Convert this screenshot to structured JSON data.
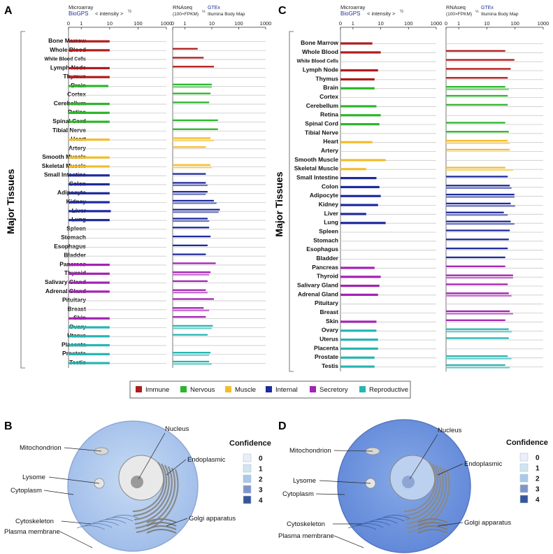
{
  "figure": {
    "panel_labels": {
      "a": "A",
      "b": "B",
      "c": "C",
      "d": "D"
    },
    "y_axis_title": "Major Tissues",
    "microarray": {
      "title": "Microarray",
      "source": "BioGPS",
      "metric": "< intensity >",
      "exponent": "½"
    },
    "rnaseq": {
      "title": "RNAseq",
      "metric": "(100×FPKM)",
      "exponent": "½"
    },
    "gtex": {
      "title": "GTEx",
      "subtitle": "Illumina Body Map"
    },
    "tick_labels": [
      "0",
      "1",
      "10",
      "100",
      "1000"
    ],
    "tissues": [
      "Bone Marrow",
      "Whole Blood",
      "White Blood Cells",
      "Lymph Node",
      "Thymus",
      "Brain",
      "Cortex",
      "Cerebellum",
      "Retina",
      "Spinal Cord",
      "Tibial Nerve",
      "Heart",
      "Artery",
      "Smooth Muscle",
      "Skeletal Muscle",
      "Small Intestine",
      "Colon",
      "Adipocyte",
      "Kidney",
      "Liver",
      "Lung",
      "Spleen",
      "Stomach",
      "Esophagus",
      "Bladder",
      "Pancreas",
      "Thyroid",
      "Salivary Gland",
      "Adrenal Gland",
      "Pituitary",
      "Breast",
      "Skin",
      "Ovary",
      "Uterus",
      "Placenta",
      "Prostate",
      "Testis"
    ],
    "tissue_groups": [
      "Immune",
      "Immune",
      "Immune",
      "Immune",
      "Immune",
      "Nervous",
      "Nervous",
      "Nervous",
      "Nervous",
      "Nervous",
      "Nervous",
      "Muscle",
      "Muscle",
      "Muscle",
      "Muscle",
      "Internal",
      "Internal",
      "Internal",
      "Internal",
      "Internal",
      "Internal",
      "Internal",
      "Internal",
      "Internal",
      "Internal",
      "Secretory",
      "Secretory",
      "Secretory",
      "Secretory",
      "Secretory",
      "Secretory",
      "Secretory",
      "Reproductive",
      "Reproductive",
      "Reproductive",
      "Reproductive",
      "Reproductive"
    ],
    "legend": [
      {
        "name": "Immune",
        "color": "#b01c1c"
      },
      {
        "name": "Nervous",
        "color": "#2db52d"
      },
      {
        "name": "Muscle",
        "color": "#f2bd2c"
      },
      {
        "name": "Internal",
        "color": "#1f2a9c"
      },
      {
        "name": "Secretory",
        "color": "#a422b4"
      },
      {
        "name": "Reproductive",
        "color": "#27b5b2"
      }
    ],
    "cell": {
      "labels": {
        "nucleus": "Nucleus",
        "mitochondrion": "Mitochondrion",
        "endoplasmic": "Endoplasmic",
        "lysome": "Lysome",
        "cytoplasm": "Cytoplasm",
        "cytoskeleton": "Cytoskeleton",
        "golgi": "Golgi apparatus",
        "plasma_membrane": "Plasma membrane"
      },
      "confidence_title": "Confidence",
      "confidence_levels": [
        "0",
        "1",
        "2",
        "3",
        "4"
      ],
      "confidence_colors": [
        "#e9eef8",
        "#cfe6f0",
        "#a9c9ea",
        "#7f95c7",
        "#35579a"
      ]
    }
  },
  "chart_data": [
    {
      "type": "bar",
      "orientation": "horizontal",
      "panel": "A",
      "dataset": "Microarray (BioGPS)",
      "title": "Microarray BioGPS < intensity >^1/2",
      "xlabel": "< intensity >^1/2",
      "ylabel": "Major Tissues",
      "xscale": "log",
      "xlim": [
        0,
        1000
      ],
      "categories": [
        "Bone Marrow",
        "Whole Blood",
        "White Blood Cells",
        "Lymph Node",
        "Thymus",
        "Brain",
        "Cortex",
        "Cerebellum",
        "Retina",
        "Spinal Cord",
        "Tibial Nerve",
        "Heart",
        "Artery",
        "Smooth Muscle",
        "Skeletal Muscle",
        "Small Intestine",
        "Colon",
        "Adipocyte",
        "Kidney",
        "Liver",
        "Lung",
        "Spleen",
        "Stomach",
        "Esophagus",
        "Bladder",
        "Pancreas",
        "Thyroid",
        "Salivary Gland",
        "Adrenal Gland",
        "Pituitary",
        "Breast",
        "Skin",
        "Ovary",
        "Uterus",
        "Placenta",
        "Prostate",
        "Testis"
      ],
      "values": [
        10,
        10,
        null,
        10,
        10,
        9,
        null,
        10,
        10,
        10,
        null,
        10,
        null,
        10,
        10,
        10,
        10,
        10,
        10,
        11,
        10,
        null,
        null,
        null,
        null,
        10,
        10,
        10,
        10,
        null,
        null,
        10,
        10,
        10,
        10,
        10,
        10
      ]
    },
    {
      "type": "bar",
      "orientation": "horizontal",
      "panel": "A",
      "dataset": "RNAseq (GTEx / Illumina Body Map)",
      "title": "RNAseq (100×FPKM)^1/2",
      "xlabel": "(100×FPKM)^1/2",
      "xscale": "log",
      "xlim": [
        0,
        1000
      ],
      "categories": [
        "Bone Marrow",
        "Whole Blood",
        "White Blood Cells",
        "Lymph Node",
        "Thymus",
        "Brain",
        "Cortex",
        "Cerebellum",
        "Retina",
        "Spinal Cord",
        "Tibial Nerve",
        "Heart",
        "Artery",
        "Smooth Muscle",
        "Skeletal Muscle",
        "Small Intestine",
        "Colon",
        "Adipocyte",
        "Kidney",
        "Liver",
        "Lung",
        "Spleen",
        "Stomach",
        "Esophagus",
        "Bladder",
        "Pancreas",
        "Thyroid",
        "Salivary Gland",
        "Adrenal Gland",
        "Pituitary",
        "Breast",
        "Skin",
        "Ovary",
        "Uterus",
        "Placenta",
        "Prostate",
        "Testis"
      ],
      "series": [
        {
          "name": "GTEx",
          "values": [
            null,
            3,
            5,
            12,
            null,
            10,
            9,
            8,
            null,
            17,
            17,
            9,
            6,
            null,
            9,
            6,
            6,
            7,
            12,
            20,
            7,
            8,
            9,
            7,
            6,
            14,
            9,
            7,
            6,
            12,
            5,
            6,
            11,
            7,
            null,
            9,
            8
          ]
        },
        {
          "name": "Illumina Body Map",
          "values": [
            null,
            null,
            null,
            null,
            null,
            10,
            null,
            null,
            null,
            null,
            null,
            12,
            null,
            null,
            10,
            null,
            7,
            6,
            15,
            18,
            8,
            null,
            null,
            null,
            null,
            null,
            8,
            null,
            7,
            null,
            8,
            null,
            10,
            null,
            null,
            8,
            10
          ]
        }
      ]
    },
    {
      "type": "bar",
      "orientation": "horizontal",
      "panel": "C",
      "dataset": "Microarray (BioGPS)",
      "title": "Microarray BioGPS < intensity >^1/2",
      "xlabel": "< intensity >^1/2",
      "ylabel": "Major Tissues",
      "xscale": "log",
      "xlim": [
        0,
        1000
      ],
      "categories": [
        "Bone Marrow",
        "Whole Blood",
        "White Blood Cells",
        "Lymph Node",
        "Thymus",
        "Brain",
        "Cortex",
        "Cerebellum",
        "Retina",
        "Spinal Cord",
        "Tibial Nerve",
        "Heart",
        "Artery",
        "Smooth Muscle",
        "Skeletal Muscle",
        "Small Intestine",
        "Colon",
        "Adipocyte",
        "Kidney",
        "Liver",
        "Lung",
        "Spleen",
        "Stomach",
        "Esophagus",
        "Bladder",
        "Pancreas",
        "Thyroid",
        "Salivary Gland",
        "Adrenal Gland",
        "Pituitary",
        "Breast",
        "Skin",
        "Ovary",
        "Uterus",
        "Placenta",
        "Prostate",
        "Testis"
      ],
      "values": [
        5,
        10,
        null,
        8,
        6,
        6,
        null,
        7,
        10,
        9,
        null,
        5,
        null,
        15,
        3,
        7,
        9,
        10,
        8,
        3,
        15,
        null,
        null,
        null,
        null,
        6,
        10,
        9,
        8,
        null,
        null,
        7,
        7,
        8,
        8,
        6,
        6
      ]
    },
    {
      "type": "bar",
      "orientation": "horizontal",
      "panel": "C",
      "dataset": "RNAseq (GTEx / Illumina Body Map)",
      "title": "RNAseq (100×FPKM)^1/2",
      "xlabel": "(100×FPKM)^1/2",
      "xscale": "log",
      "xlim": [
        0,
        1000
      ],
      "categories": [
        "Bone Marrow",
        "Whole Blood",
        "White Blood Cells",
        "Lymph Node",
        "Thymus",
        "Brain",
        "Cortex",
        "Cerebellum",
        "Retina",
        "Spinal Cord",
        "Tibial Nerve",
        "Heart",
        "Artery",
        "Smooth Muscle",
        "Skeletal Muscle",
        "Small Intestine",
        "Colon",
        "Adipocyte",
        "Kidney",
        "Liver",
        "Lung",
        "Spleen",
        "Stomach",
        "Esophagus",
        "Bladder",
        "Pancreas",
        "Thyroid",
        "Salivary Gland",
        "Adrenal Gland",
        "Pituitary",
        "Breast",
        "Skin",
        "Ovary",
        "Uterus",
        "Placenta",
        "Prostate",
        "Testis"
      ],
      "series": [
        {
          "name": "GTEx",
          "values": [
            null,
            45,
            95,
            70,
            55,
            45,
            55,
            55,
            null,
            45,
            60,
            55,
            65,
            null,
            45,
            55,
            65,
            95,
            70,
            40,
            70,
            65,
            60,
            55,
            45,
            45,
            85,
            55,
            60,
            null,
            65,
            45,
            60,
            60,
            null,
            55,
            45
          ]
        },
        {
          "name": "Illumina Body Map",
          "values": [
            null,
            null,
            null,
            null,
            null,
            60,
            null,
            null,
            null,
            null,
            null,
            65,
            null,
            null,
            85,
            null,
            75,
            95,
            100,
            55,
            95,
            null,
            null,
            null,
            null,
            null,
            85,
            null,
            75,
            null,
            85,
            null,
            75,
            null,
            null,
            75,
            65
          ]
        }
      ]
    }
  ]
}
